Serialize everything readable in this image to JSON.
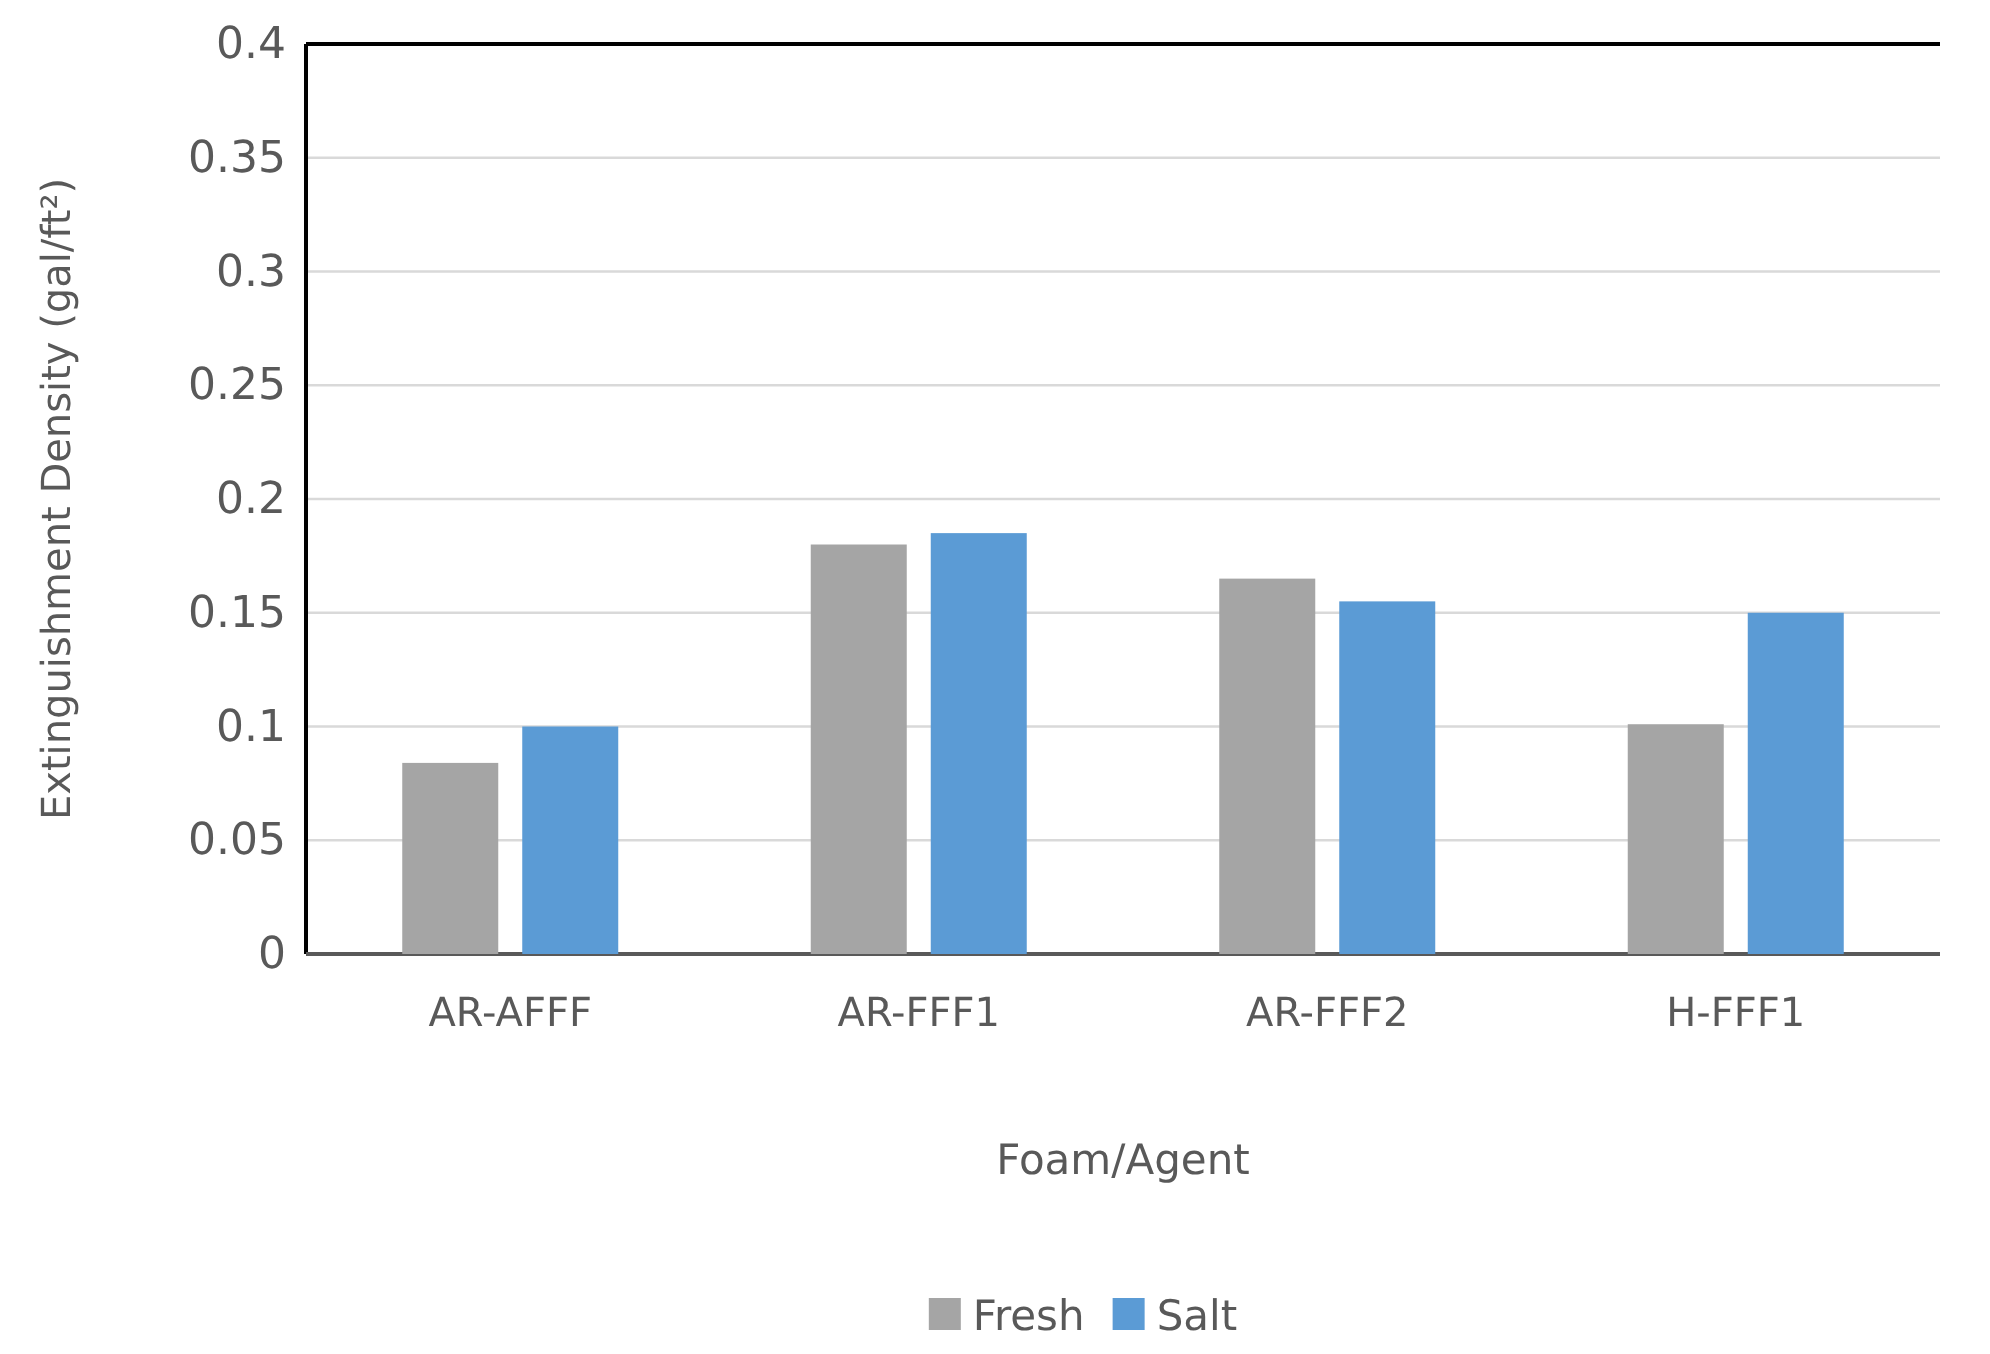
{
  "chart_data": {
    "type": "bar",
    "xlabel": "Foam/Agent",
    "ylabel": "Extinguishment Density  (gal/ft²)",
    "categories": [
      "AR-AFFF",
      "AR-FFF1",
      "AR-FFF2",
      "H-FFF1"
    ],
    "series": [
      {
        "name": "Fresh",
        "color": "#a5a5a5",
        "values": [
          0.084,
          0.18,
          0.165,
          0.101
        ]
      },
      {
        "name": "Salt",
        "color": "#5b9bd5",
        "values": [
          0.1,
          0.185,
          0.155,
          0.15
        ]
      }
    ],
    "ylim": [
      0,
      0.4
    ],
    "yticks": [
      0,
      0.05,
      0.1,
      0.15,
      0.2,
      0.25,
      0.3,
      0.35,
      0.4
    ],
    "grid": "y",
    "legend": "bottom"
  }
}
